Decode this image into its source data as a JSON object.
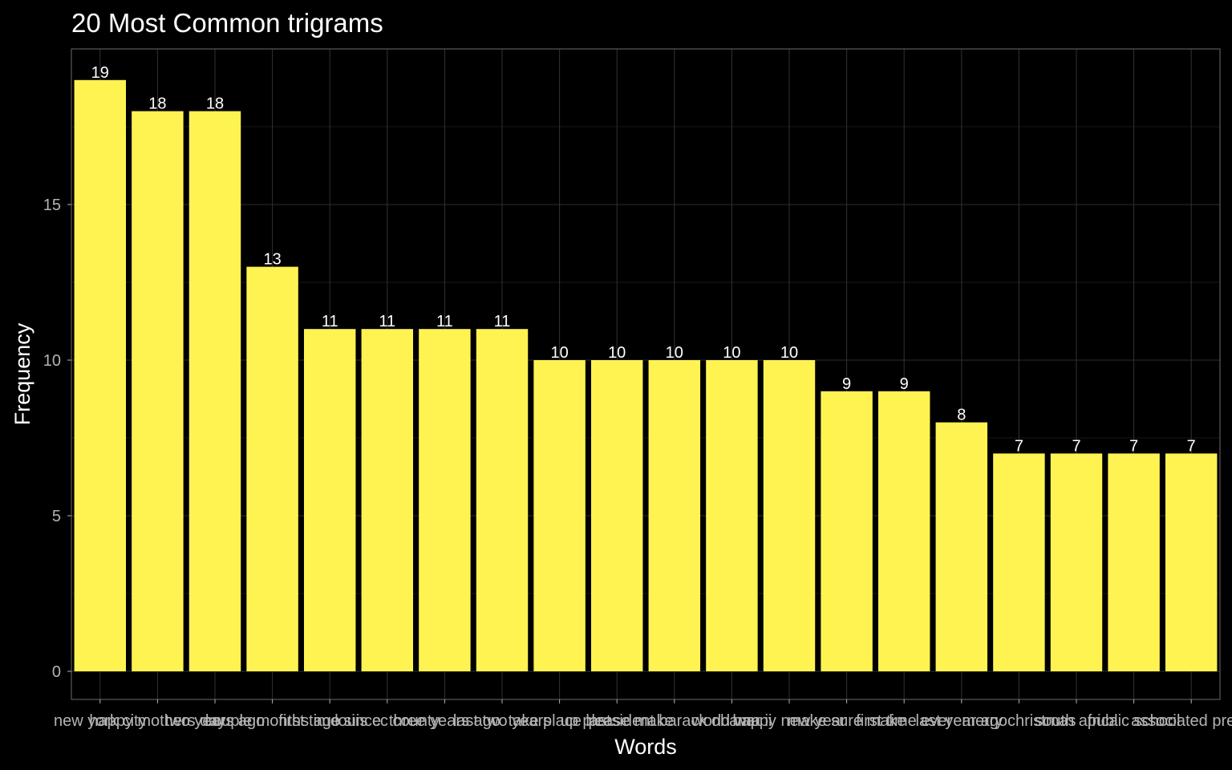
{
  "chart_data": {
    "type": "bar",
    "title": "20 Most Common trigrams",
    "xlabel": "Words",
    "ylabel": "Frequency",
    "ylim": [
      0,
      19.95
    ],
    "yticks": [
      0,
      5,
      10,
      15
    ],
    "grid": true,
    "categories": [
      "new york city",
      "happy mothers day",
      "two years ago",
      "couple months ago",
      "first time since",
      "louis cc county",
      "three years ago",
      "last two years",
      "take place last",
      "up please make",
      "president barack obama",
      "world war ii",
      "happy new year",
      "make sure make",
      "first time ever",
      "last year ago",
      "merry christmas",
      "south africa",
      "public school",
      "associated press"
    ],
    "values": [
      19,
      18,
      18,
      13,
      11,
      11,
      11,
      11,
      10,
      10,
      10,
      10,
      10,
      9,
      9,
      8,
      7,
      7,
      7,
      7
    ],
    "data_labels": [
      "19",
      "18",
      "18",
      "13",
      "11",
      "11",
      "11",
      "11",
      "10",
      "10",
      "10",
      "10",
      "10",
      "9",
      "9",
      "8",
      "7",
      "7",
      "7",
      "7"
    ]
  },
  "colors": {
    "background": "#000000",
    "bar": "#fff352",
    "grid": "#2e2e2e",
    "panel_border": "#5a5a5a",
    "text": "#ffffff",
    "tick_text": "#b3b3b3"
  }
}
